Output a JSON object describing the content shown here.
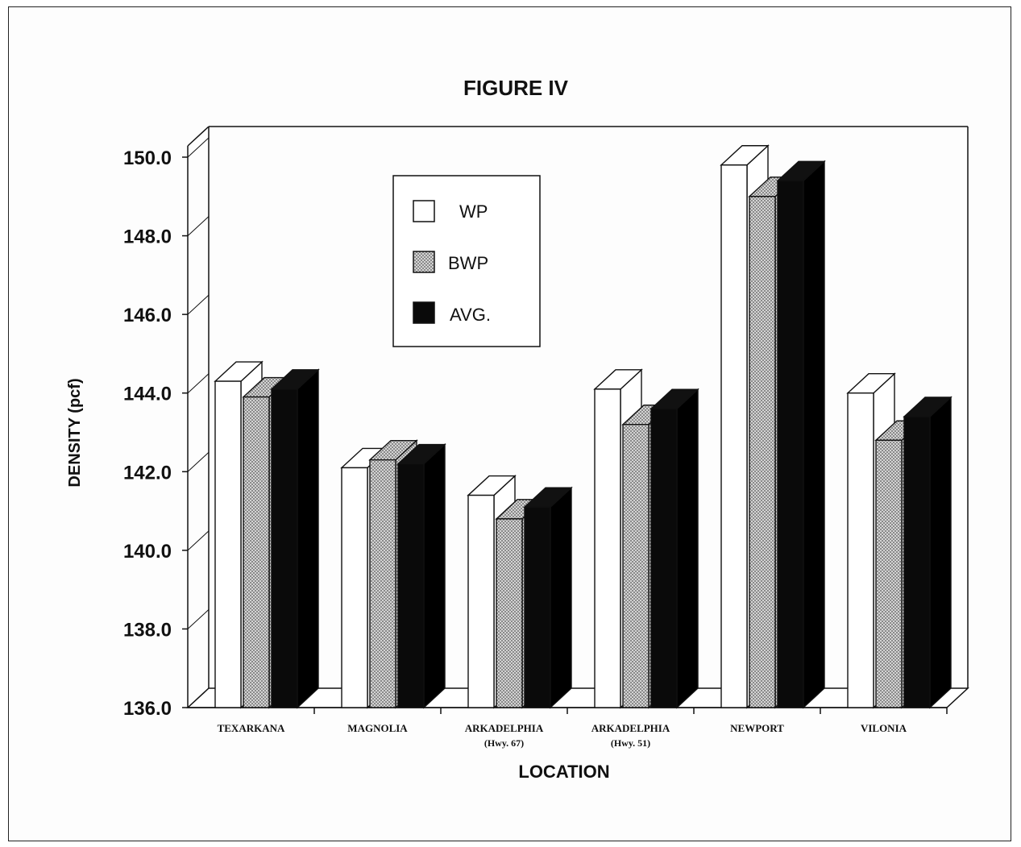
{
  "chart_data": {
    "type": "bar",
    "title": "FIGURE IV",
    "xlabel": "LOCATION",
    "ylabel": "DENSITY (pcf)",
    "ylim": [
      136.0,
      150.0
    ],
    "yticks": [
      "136.0",
      "138.0",
      "140.0",
      "142.0",
      "144.0",
      "146.0",
      "148.0",
      "150.0"
    ],
    "categories": [
      {
        "line1": "TEXARKANA",
        "line2": ""
      },
      {
        "line1": "MAGNOLIA",
        "line2": ""
      },
      {
        "line1": "ARKADELPHIA",
        "line2": "(Hwy. 67)"
      },
      {
        "line1": "ARKADELPHIA",
        "line2": "(Hwy. 51)"
      },
      {
        "line1": "NEWPORT",
        "line2": ""
      },
      {
        "line1": "VILONIA",
        "line2": ""
      }
    ],
    "series": [
      {
        "name": "WP",
        "values": [
          144.3,
          142.1,
          141.4,
          144.1,
          149.8,
          144.0
        ],
        "fill": "white"
      },
      {
        "name": "BWP",
        "values": [
          143.9,
          142.3,
          140.8,
          143.2,
          149.0,
          142.8
        ],
        "fill": "dotted"
      },
      {
        "name": "AVG.",
        "values": [
          144.1,
          142.2,
          141.1,
          143.6,
          149.4,
          143.4
        ],
        "fill": "black"
      }
    ],
    "legend_position": "top-left-inside",
    "grid": false,
    "style": "3d-bars"
  }
}
